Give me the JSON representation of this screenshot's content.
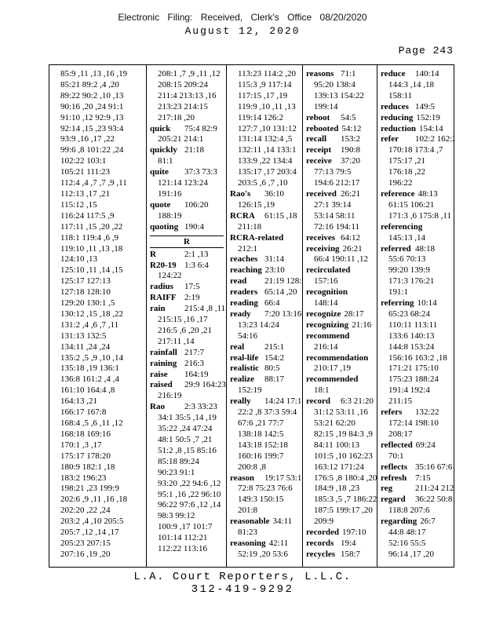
{
  "page": {
    "header_line1": "Electronic Filing: Received, Clerk's Office 08/20/2020",
    "header_line2": "August 12, 2020",
    "page_label": "Page 243",
    "footer_line1": "L.A. Court Reporters, L.L.C.",
    "footer_line2": "312-419-9292"
  },
  "index": {
    "columns": [
      {
        "lines": [
          {
            "t": "85:9 ,11 ,13 ,16 ,19"
          },
          {
            "t": "85:21 89:2 ,4 ,20"
          },
          {
            "t": "89:22 90:2 ,10 ,13"
          },
          {
            "t": "90:16 ,20 ,24 91:1"
          },
          {
            "t": "91:10 ,12 92:9 ,13"
          },
          {
            "t": "92:14 ,15 ,23 93:4"
          },
          {
            "t": "93:9 ,16 ,17 ,22"
          },
          {
            "t": "99:6 ,8 101:22 ,24"
          },
          {
            "t": "102:22 103:1"
          },
          {
            "t": "105:21 111:23"
          },
          {
            "t": "112:4 ,4 ,7 ,7 ,9 ,11"
          },
          {
            "t": "112:13 ,17 ,21"
          },
          {
            "t": "115:12 ,15"
          },
          {
            "t": "116:24 117:5 ,9"
          },
          {
            "t": "117:11 ,15 ,20 ,22"
          },
          {
            "t": "118:1 119:4 ,6 ,9"
          },
          {
            "t": "119:10 ,11 ,13 ,18"
          },
          {
            "t": "124:10 ,13"
          },
          {
            "t": "125:10 ,11 ,14 ,15"
          },
          {
            "t": "125:17 127:13"
          },
          {
            "t": "127:18 128:10"
          },
          {
            "t": "129:20 130:1 ,5"
          },
          {
            "t": "130:12 ,15 ,18 ,22"
          },
          {
            "t": "131:2 ,4 ,6 ,7 ,11"
          },
          {
            "t": "131:13 132:5"
          },
          {
            "t": "134:11 ,24 ,24"
          },
          {
            "t": "135:2 ,5 ,9 ,10 ,14"
          },
          {
            "t": "135:18 ,19 136:1"
          },
          {
            "t": "136:8 161:2 ,4 ,4"
          },
          {
            "t": "161:10 164:4 ,8"
          },
          {
            "t": "164:13 ,21"
          },
          {
            "t": "166:17 167:8"
          },
          {
            "t": "168:4 ,5 ,6 ,11 ,12"
          },
          {
            "t": "168:18 169:16"
          },
          {
            "t": "170:1 ,3 ,17"
          },
          {
            "t": "175:17 178:20"
          },
          {
            "t": "180:9 182:1 ,18"
          },
          {
            "t": "183:2 196:23"
          },
          {
            "t": "198:21 ,23 199:9"
          },
          {
            "t": "202:6 ,9 ,11 ,16 ,18"
          },
          {
            "t": "202:20 ,22 ,24"
          },
          {
            "t": "203:2 ,4 ,10 205:5"
          },
          {
            "t": "205:7 ,12 ,14 ,17"
          },
          {
            "t": "205:23 207:15"
          },
          {
            "t": "207:16 ,19 ,20"
          }
        ]
      },
      {
        "lines": [
          {
            "t": "208:1 ,7 ,9 ,11 ,12"
          },
          {
            "t": "208:15 209:24"
          },
          {
            "t": "211:4 213:13 ,16"
          },
          {
            "t": "213:23 214:15"
          },
          {
            "t": "217:18 ,20"
          },
          {
            "b": "quick",
            "t": "75:4 82:9"
          },
          {
            "t": "205:21 214:1"
          },
          {
            "b": "quickly",
            "t": "21:18"
          },
          {
            "t": "81:1"
          },
          {
            "b": "quite",
            "t": "37:3 73:3"
          },
          {
            "t": "121:14 123:24"
          },
          {
            "t": "191:16"
          },
          {
            "b": "quote",
            "t": "106:20"
          },
          {
            "t": "188:19"
          },
          {
            "b": "quoting",
            "t": "190:4"
          },
          {
            "s": "R"
          },
          {
            "b": "R",
            "t": "2:1 ,13"
          },
          {
            "b": "R20-19",
            "t": "1:3 6:4"
          },
          {
            "t": "124:22"
          },
          {
            "b": "radius",
            "t": "17:5"
          },
          {
            "b": "RAIFF",
            "t": "2:19"
          },
          {
            "b": "rain",
            "t": "215:4 ,8 ,11 ,12"
          },
          {
            "t": "215:15 ,16 ,17"
          },
          {
            "t": "216:5 ,6 ,20 ,21"
          },
          {
            "t": "217:11 ,14"
          },
          {
            "b": "rainfall",
            "t": "217:7"
          },
          {
            "b": "raining",
            "t": "216:3"
          },
          {
            "b": "raise",
            "t": "164:19"
          },
          {
            "b": "raised",
            "t": "29:9 164:23"
          },
          {
            "t": "216:19"
          },
          {
            "b": "Rao",
            "t": "2:3 33:23"
          },
          {
            "t": "34:1 35:5 ,14 ,19"
          },
          {
            "t": "35:22 ,24 47:24"
          },
          {
            "t": "48:1 50:5 ,7 ,21"
          },
          {
            "t": "51:2 ,8 ,15 85:16"
          },
          {
            "t": "85:18 89:24"
          },
          {
            "t": "90:23 91:1"
          },
          {
            "t": "93:20 ,22 94:6 ,12"
          },
          {
            "t": "95:1 ,16 ,22 96:10"
          },
          {
            "t": "96:22 97:6 ,12 ,14"
          },
          {
            "t": "98:3 99:12"
          },
          {
            "t": "100:9 ,17 101:7"
          },
          {
            "t": "101:14 112:21"
          },
          {
            "t": "112:22 113:16"
          }
        ]
      },
      {
        "lines": [
          {
            "t": "113:23 114:2 ,20"
          },
          {
            "t": "115:3 ,9 117:14"
          },
          {
            "t": "117:15 ,17 ,19"
          },
          {
            "t": "119:9 ,10 ,11 ,13"
          },
          {
            "t": "119:14 126:2"
          },
          {
            "t": "127:7 ,10 131:12"
          },
          {
            "t": "131:14 132:4 ,5"
          },
          {
            "t": "132:11 ,14 133:1"
          },
          {
            "t": "133:9 ,22 134:4"
          },
          {
            "t": "135:17 ,17 203:4"
          },
          {
            "t": "203:5 ,6 ,7 ,10"
          },
          {
            "b": "Rao's",
            "t": "36:10"
          },
          {
            "t": "126:15 ,19"
          },
          {
            "b": "RCRA",
            "t": "61:15 ,18"
          },
          {
            "t": "211:18"
          },
          {
            "b": "RCRA-related"
          },
          {
            "t": "212:1"
          },
          {
            "b": "reaches",
            "t": "31:14"
          },
          {
            "b": "reaching",
            "t": "23:10"
          },
          {
            "b": "read",
            "t": "21:19 128:16"
          },
          {
            "b": "readers",
            "t": "65:14 ,20"
          },
          {
            "b": "reading",
            "t": "66:4"
          },
          {
            "b": "ready",
            "t": "7:20 13:16"
          },
          {
            "t": "13:23 14:24"
          },
          {
            "t": "54:16"
          },
          {
            "b": "real",
            "t": "215:1"
          },
          {
            "b": "real-life",
            "t": "154:2"
          },
          {
            "b": "realistic",
            "t": "80:5"
          },
          {
            "b": "realize",
            "t": "88:17"
          },
          {
            "t": "152:19"
          },
          {
            "b": "really",
            "t": "14:24 17:18"
          },
          {
            "t": "22:2 ,8 37:3 59:4"
          },
          {
            "t": "67:6 ,21 77:7"
          },
          {
            "t": "138:18 142:5"
          },
          {
            "t": "143:18 152:18"
          },
          {
            "t": "160:16 199:7"
          },
          {
            "t": "200:8 ,8"
          },
          {
            "b": "reason",
            "t": "19:17 53:1"
          },
          {
            "t": "72:8 75:23 76:6"
          },
          {
            "t": "149:3 150:15"
          },
          {
            "t": "201:8"
          },
          {
            "b": "reasonable",
            "t": "34:11"
          },
          {
            "t": "81:23"
          },
          {
            "b": "reasoning",
            "t": "42:11"
          },
          {
            "t": "52:19 ,20 53:6"
          }
        ]
      },
      {
        "lines": [
          {
            "b": "reasons",
            "t": "71:1"
          },
          {
            "t": "95:20 138:4"
          },
          {
            "t": "139:13 154:22"
          },
          {
            "t": "199:14"
          },
          {
            "b": "reboot",
            "t": "54:5"
          },
          {
            "b": "rebooted",
            "t": "54:12"
          },
          {
            "b": "recall",
            "t": "153:2"
          },
          {
            "b": "receipt",
            "t": "190:8"
          },
          {
            "b": "receive",
            "t": "37:20"
          },
          {
            "t": "77:13 79:5"
          },
          {
            "t": "194:6 212:17"
          },
          {
            "b": "received",
            "t": "26:21"
          },
          {
            "t": "27:1 39:14"
          },
          {
            "t": "53:14 58:11"
          },
          {
            "t": "72:16 194:11"
          },
          {
            "b": "receives",
            "t": "64:12"
          },
          {
            "b": "receiving",
            "t": "26:21"
          },
          {
            "t": "66:4 190:11 ,12"
          },
          {
            "b": "recirculated"
          },
          {
            "t": "157:16"
          },
          {
            "b": "recognition"
          },
          {
            "t": "148:14"
          },
          {
            "b": "recognize",
            "t": "28:17"
          },
          {
            "b": "recognizing",
            "t": "21:16"
          },
          {
            "b": "recommend"
          },
          {
            "t": "216:14"
          },
          {
            "b": "recommendation"
          },
          {
            "t": "210:17 ,19"
          },
          {
            "b": "recommended"
          },
          {
            "t": "18:1"
          },
          {
            "b": "record",
            "t": "6:3 21:20"
          },
          {
            "t": "31:12 53:11 ,16"
          },
          {
            "t": "53:21 62:20"
          },
          {
            "t": "82:15 ,19 84:3 ,9"
          },
          {
            "t": "84:11 100:13"
          },
          {
            "t": "101:5 ,10 162:23"
          },
          {
            "t": "163:12 171:24"
          },
          {
            "t": "176:5 ,8 180:4 ,20"
          },
          {
            "t": "184:9 ,18 ,23"
          },
          {
            "t": "185:3 ,5 ,7 186:22"
          },
          {
            "t": "187:5 199:17 ,20"
          },
          {
            "t": "209:9"
          },
          {
            "b": "recorded",
            "t": "197:10"
          },
          {
            "b": "records",
            "t": "19:4"
          },
          {
            "b": "recycles",
            "t": "158:7"
          }
        ]
      },
      {
        "lines": [
          {
            "b": "reduce",
            "t": "140:14"
          },
          {
            "t": "144:3 ,14 ,18"
          },
          {
            "t": "158:11"
          },
          {
            "b": "reduces",
            "t": "149:5"
          },
          {
            "b": "reducing",
            "t": "152:19"
          },
          {
            "b": "reduction",
            "t": "154:14"
          },
          {
            "b": "refer",
            "t": "102:2 162:21"
          },
          {
            "t": "170:18 173:4 ,7"
          },
          {
            "t": "175:17 ,21"
          },
          {
            "t": "176:18 ,22"
          },
          {
            "t": "196:22"
          },
          {
            "b": "reference",
            "t": "48:13"
          },
          {
            "t": "61:15 106:21"
          },
          {
            "t": "171:3 ,6 175:8 ,11"
          },
          {
            "b": "referencing"
          },
          {
            "t": "145:13 ,14"
          },
          {
            "b": "referred",
            "t": "48:18"
          },
          {
            "t": "55:6 70:13"
          },
          {
            "t": "99:20 139:9"
          },
          {
            "t": "171:3 176:21"
          },
          {
            "t": "191:1"
          },
          {
            "b": "referring",
            "t": "10:14"
          },
          {
            "t": "65:23 68:24"
          },
          {
            "t": "110:11 113:11"
          },
          {
            "t": "133:6 140:13"
          },
          {
            "t": "144:8 153:24"
          },
          {
            "t": "156:16 163:2 ,18"
          },
          {
            "t": "171:21 175:10"
          },
          {
            "t": "175:23 188:24"
          },
          {
            "t": "191:4 192:4"
          },
          {
            "t": "211:15"
          },
          {
            "b": "refers",
            "t": "132:22"
          },
          {
            "t": "172:14 198:10"
          },
          {
            "t": "208:17"
          },
          {
            "b": "reflected",
            "t": "69:24"
          },
          {
            "t": "70:1"
          },
          {
            "b": "reflects",
            "t": "35:16 67:6"
          },
          {
            "b": "refresh",
            "t": "7:15"
          },
          {
            "b": "reg",
            "t": "211:24 212:3"
          },
          {
            "b": "regard",
            "t": "36:22 50:8"
          },
          {
            "t": "118:8 207:6"
          },
          {
            "b": "regarding",
            "t": "26:7"
          },
          {
            "t": "44:8 48:17"
          },
          {
            "t": "52:16 55:5"
          },
          {
            "t": "96:14 ,17 ,20"
          }
        ]
      }
    ]
  }
}
